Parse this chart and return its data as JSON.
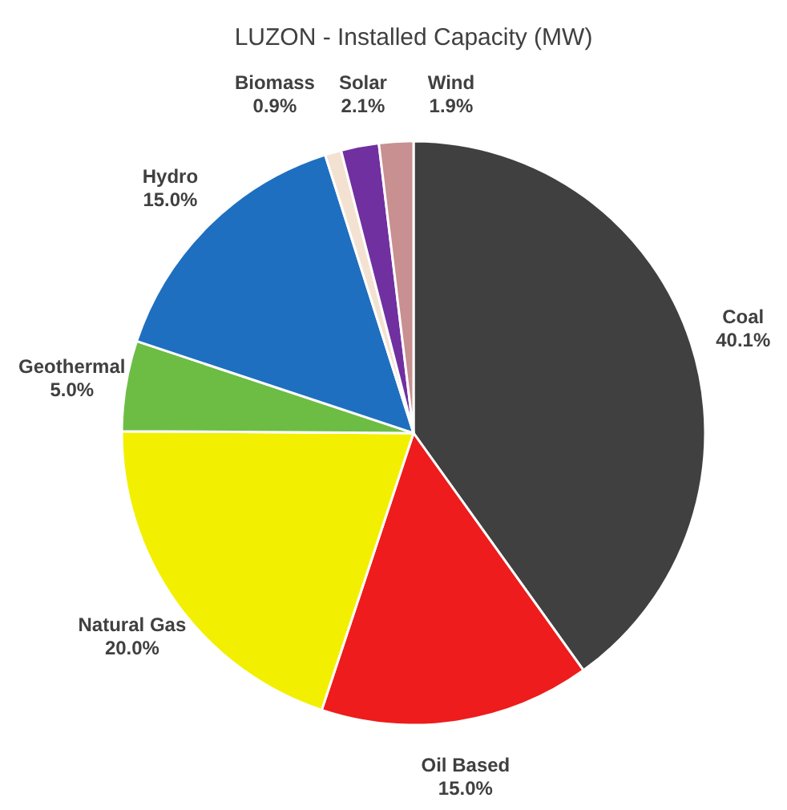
{
  "chart_data": {
    "type": "pie",
    "title": "LUZON - Installed Capacity (MW)",
    "categories": [
      "Coal",
      "Oil Based",
      "Natural Gas",
      "Geothermal",
      "Hydro",
      "Biomass",
      "Solar",
      "Wind"
    ],
    "values": [
      40.1,
      15.0,
      20.0,
      5.0,
      15.0,
      0.9,
      2.1,
      1.9
    ],
    "value_labels": [
      "40.1%",
      "15.0%",
      "20.0%",
      "5.0%",
      "15.0%",
      "0.9%",
      "2.1%",
      "1.9%"
    ],
    "colors": [
      "#404040",
      "#ee1c1c",
      "#f2f000",
      "#6dbd45",
      "#1f6fc0",
      "#f3e2d2",
      "#7030a0",
      "#c89090"
    ],
    "legend": false
  }
}
